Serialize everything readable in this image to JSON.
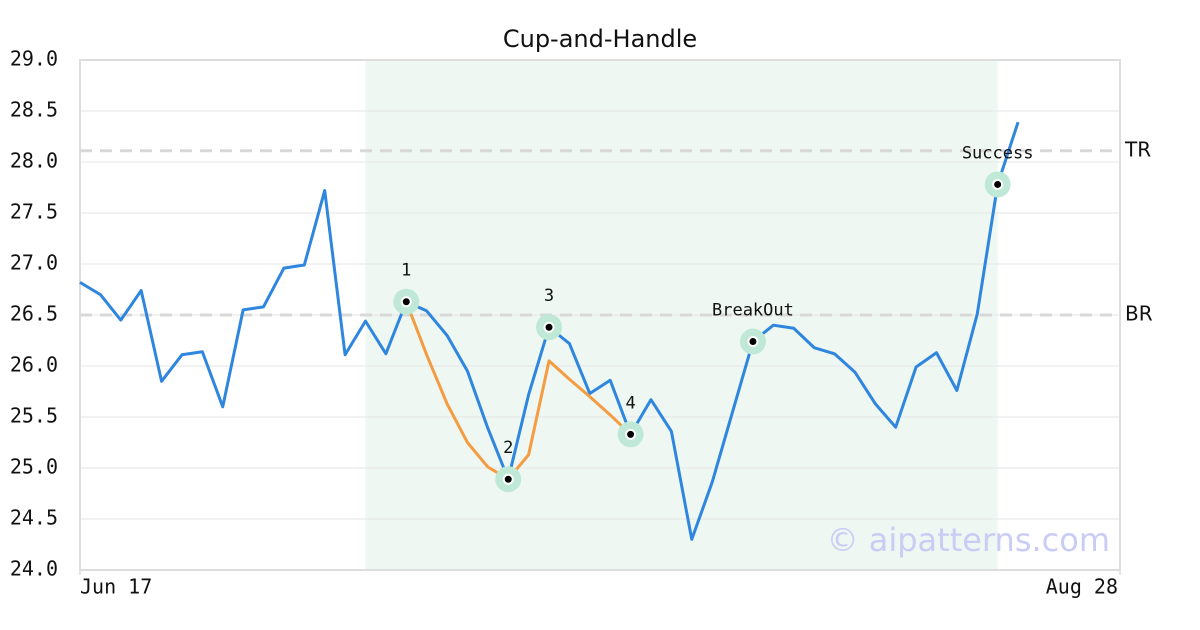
{
  "chart_data": {
    "type": "line",
    "title": "Cup-and-Handle",
    "x": [
      0,
      1,
      2,
      3,
      4,
      5,
      6,
      7,
      8,
      9,
      10,
      11,
      12,
      13,
      14,
      15,
      16,
      17,
      18,
      19,
      20,
      21,
      22,
      23,
      24,
      25,
      26,
      27,
      28,
      29,
      30,
      31,
      32,
      33,
      34,
      35,
      36,
      37,
      38,
      39,
      40,
      41,
      42,
      43,
      44,
      45,
      46
    ],
    "series": [
      {
        "color": "#2e86de",
        "values": [
          26.82,
          26.7,
          26.45,
          26.74,
          25.85,
          26.11,
          26.14,
          25.6,
          26.55,
          26.58,
          26.96,
          26.99,
          27.72,
          26.11,
          26.44,
          26.12,
          26.63,
          26.54,
          26.3,
          25.95,
          25.39,
          24.89,
          25.72,
          26.38,
          26.22,
          25.73,
          25.86,
          25.33,
          25.67,
          25.36,
          24.3,
          24.86,
          25.55,
          26.24,
          26.4,
          26.37,
          26.18,
          26.12,
          25.94,
          25.63,
          25.4,
          25.99,
          26.13,
          25.76,
          26.51,
          27.78,
          28.39
        ]
      },
      {
        "color": "#f39c42",
        "values": [
          null,
          null,
          null,
          null,
          null,
          null,
          null,
          null,
          null,
          null,
          null,
          null,
          null,
          null,
          null,
          null,
          26.63,
          26.11,
          25.63,
          25.25,
          25.01,
          24.89,
          25.13,
          26.05,
          25.87,
          25.7,
          25.52,
          25.33,
          null,
          null,
          null,
          null,
          null,
          null,
          null,
          null,
          null,
          null,
          null,
          null,
          null,
          null,
          null,
          null,
          null,
          null,
          null
        ]
      }
    ],
    "annotations": [
      {
        "label": "1",
        "x": 16,
        "y": 26.63
      },
      {
        "label": "2",
        "x": 21,
        "y": 24.89
      },
      {
        "label": "3",
        "x": 23,
        "y": 26.38
      },
      {
        "label": "4",
        "x": 27,
        "y": 25.33
      },
      {
        "label": "BreakOut",
        "x": 33,
        "y": 26.24
      },
      {
        "label": "Success",
        "x": 45,
        "y": 27.78
      }
    ],
    "hlines": [
      {
        "label": "TR",
        "value": 28.11
      },
      {
        "label": "BR",
        "value": 26.5
      }
    ],
    "highlight_range": [
      14,
      45
    ],
    "watermark": "© aipatterns.com",
    "xlim": [
      0,
      51
    ],
    "xticks": [
      {
        "value": 0,
        "label": "Jun 17"
      },
      {
        "value": 51,
        "label": "Aug 28"
      }
    ],
    "ylim": [
      24,
      29
    ],
    "yticks": [
      {
        "value": 24,
        "label": "24.0"
      },
      24.5,
      {
        "value": 25,
        "label": "25.0"
      },
      25.5,
      {
        "value": 26,
        "label": "26.0"
      },
      26.5,
      {
        "value": 27,
        "label": "27.0"
      },
      27.5,
      {
        "value": 28,
        "label": "28.0"
      },
      28.5,
      {
        "value": 29,
        "label": "29.0"
      }
    ],
    "grid": true
  }
}
